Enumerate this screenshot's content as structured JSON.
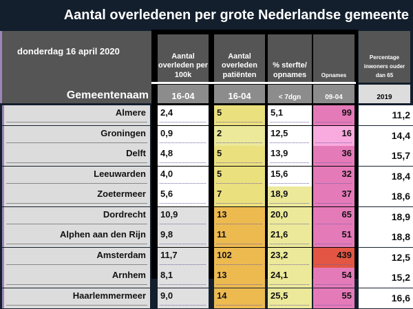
{
  "title": "Aantal overledenen per grote Nederlandse gemeente",
  "date": "donderdag 16 april 2020",
  "name_header": "Gemeentenaam",
  "columns": [
    {
      "label": "Aantal overleden per 100k",
      "sub": "16-04"
    },
    {
      "label": "Aantal overleden patiënten",
      "sub": "16-04"
    },
    {
      "label": "% sterfte/ opnames",
      "sub": "< 7dgn"
    },
    {
      "label": "Opnames",
      "sub": "09-04"
    },
    {
      "label": "Percentage inwoners ouder dan 65",
      "sub": "2019"
    }
  ],
  "colors": {
    "yellow": "#ebe07e",
    "light_yellow": "#ece99a",
    "orange": "#edba50",
    "pink": "#e57ab9",
    "light_pink": "#f9aade",
    "red": "#e35643",
    "white": "#ffffff",
    "gray": "#e0e0e0"
  },
  "rows": [
    {
      "name": "Almere",
      "per100k": "2,4",
      "deaths": "5",
      "pct": "5,1",
      "opnames": "99",
      "over65": "11,2",
      "c1": "white",
      "c2": "yellow",
      "c3": "white",
      "c4": "pink"
    },
    {
      "name": "Groningen",
      "per100k": "0,9",
      "deaths": "2",
      "pct": "12,5",
      "opnames": "16",
      "over65": "14,4",
      "c1": "white",
      "c2": "light_yellow",
      "c3": "white",
      "c4": "light_pink"
    },
    {
      "name": "Delft",
      "per100k": "4,8",
      "deaths": "5",
      "pct": "13,9",
      "opnames": "36",
      "over65": "15,7",
      "c1": "white",
      "c2": "yellow",
      "c3": "white",
      "c4": "pink"
    },
    {
      "name": "Leeuwarden",
      "per100k": "4,0",
      "deaths": "5",
      "pct": "15,6",
      "opnames": "32",
      "over65": "18,4",
      "c1": "white",
      "c2": "yellow",
      "c3": "white",
      "c4": "pink"
    },
    {
      "name": "Zoetermeer",
      "per100k": "5,6",
      "deaths": "7",
      "pct": "18,9",
      "opnames": "37",
      "over65": "18,6",
      "c1": "white",
      "c2": "yellow",
      "c3": "light_yellow",
      "c4": "pink"
    },
    {
      "name": "Dordrecht",
      "per100k": "10,9",
      "deaths": "13",
      "pct": "20,0",
      "opnames": "65",
      "over65": "18,9",
      "c1": "gray",
      "c2": "orange",
      "c3": "light_yellow",
      "c4": "pink"
    },
    {
      "name": "Alphen aan den Rijn",
      "per100k": "9,8",
      "deaths": "11",
      "pct": "21,6",
      "opnames": "51",
      "over65": "18,8",
      "c1": "gray",
      "c2": "orange",
      "c3": "light_yellow",
      "c4": "pink"
    },
    {
      "name": "Amsterdam",
      "per100k": "11,7",
      "deaths": "102",
      "pct": "23,2",
      "opnames": "439",
      "over65": "12,5",
      "c1": "gray",
      "c2": "orange",
      "c3": "light_yellow",
      "c4": "red"
    },
    {
      "name": "Arnhem",
      "per100k": "8,1",
      "deaths": "13",
      "pct": "24,1",
      "opnames": "54",
      "over65": "15,2",
      "c1": "gray",
      "c2": "orange",
      "c3": "light_yellow",
      "c4": "pink"
    },
    {
      "name": "Haarlemmermeer",
      "per100k": "9,0",
      "deaths": "14",
      "pct": "25,5",
      "opnames": "55",
      "over65": "16,6",
      "c1": "gray",
      "c2": "orange",
      "c3": "light_yellow",
      "c4": "pink"
    }
  ]
}
